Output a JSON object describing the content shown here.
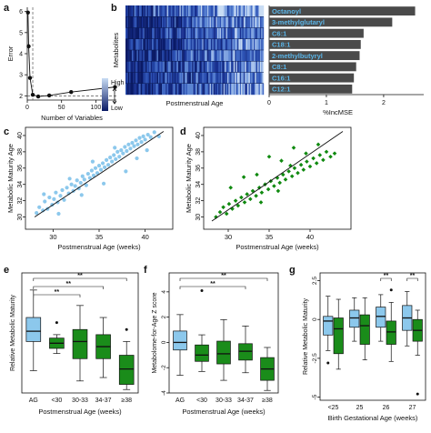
{
  "panel_labels": [
    "a",
    "b",
    "c",
    "d",
    "e",
    "f",
    "g"
  ],
  "colors": {
    "light_blue": "#8cc8ec",
    "blue_box": "#8cc8ec",
    "green": "#108a10",
    "dark_green": "#1a8c1a",
    "bar_gray": "#4a4a4a",
    "label_blue": "#5ab4e6",
    "heat_low": "#0a1a66",
    "heat_high": "#c8dcf4"
  },
  "chart_data": [
    {
      "panel": "a",
      "type": "line",
      "xlabel": "Number of Variables",
      "ylabel": "Error",
      "xlim": [
        0,
        130
      ],
      "ylim": [
        1.8,
        6.2
      ],
      "xticks": [
        "0",
        "50",
        "100"
      ],
      "yticks": [
        "2",
        "3",
        "4",
        "5",
        "6"
      ],
      "reference_line_y": 2.0,
      "x": [
        1,
        2,
        4,
        8,
        16,
        32,
        64,
        128
      ],
      "y": [
        5.95,
        4.35,
        2.85,
        2.05,
        1.97,
        2.02,
        2.18,
        2.42
      ]
    },
    {
      "panel": "b-heatmap",
      "type": "heatmap",
      "xlabel": "Postmenstrual Age",
      "ylabel": "Metabolites",
      "legend": {
        "high": "High",
        "low": "Low"
      }
    },
    {
      "panel": "b-bar",
      "type": "bar",
      "orientation": "horizontal",
      "xlabel": "%IncMSE",
      "xticks": [
        "0",
        "1",
        "2"
      ],
      "xlim": [
        0,
        2.7
      ],
      "categories": [
        "Octanoyl",
        "3-methylglutaryl",
        "C6:1",
        "C18:1",
        "2-methylbutyryl",
        "C8:1",
        "C16:1",
        "C12:1"
      ],
      "values": [
        2.55,
        2.15,
        1.65,
        1.6,
        1.58,
        1.52,
        1.48,
        1.45
      ]
    },
    {
      "panel": "c",
      "type": "scatter",
      "xlabel": "Postmenstrual Age (weeks)",
      "ylabel": "Metabolic Maturity Age",
      "xlim": [
        27,
        43
      ],
      "ylim": [
        28.5,
        41
      ],
      "xticks": [
        "30",
        "35",
        "40"
      ],
      "yticks": [
        "30",
        "32",
        "34",
        "36",
        "38",
        "40"
      ],
      "fit_line": [
        [
          28,
          30
        ],
        [
          42,
          40.5
        ]
      ],
      "x": [
        28.2,
        28.5,
        28.9,
        29.1,
        29.4,
        29.6,
        29.9,
        30.1,
        30.3,
        30.5,
        30.8,
        31.0,
        31.2,
        31.5,
        31.7,
        32.0,
        32.2,
        32.4,
        32.6,
        32.8,
        33.0,
        33.2,
        33.4,
        33.6,
        33.8,
        34.0,
        34.2,
        34.4,
        34.6,
        34.8,
        35.0,
        35.2,
        35.4,
        35.6,
        35.8,
        36.0,
        36.2,
        36.4,
        36.6,
        36.8,
        37.0,
        37.2,
        37.4,
        37.6,
        37.8,
        38.0,
        38.2,
        38.4,
        38.6,
        38.8,
        39.0,
        39.2,
        39.4,
        39.6,
        39.8,
        40.0,
        40.3,
        40.6,
        41.0,
        41.5,
        29.0,
        30.6,
        31.8,
        33.1,
        34.3,
        35.5,
        36.7,
        37.9,
        39.1,
        40.2
      ],
      "y": [
        30.5,
        31.2,
        30.8,
        31.9,
        31.0,
        32.4,
        31.5,
        32.2,
        33.0,
        31.8,
        32.6,
        33.3,
        32.1,
        33.6,
        32.9,
        34.0,
        33.2,
        33.8,
        34.5,
        33.5,
        34.2,
        35.0,
        34.6,
        33.9,
        35.3,
        34.8,
        35.7,
        35.1,
        36.0,
        35.4,
        36.3,
        35.8,
        36.6,
        36.1,
        37.0,
        36.4,
        37.3,
        36.8,
        37.6,
        37.1,
        38.0,
        37.4,
        38.2,
        37.8,
        38.6,
        38.1,
        38.9,
        38.4,
        39.1,
        38.7,
        39.4,
        38.9,
        39.7,
        39.2,
        39.9,
        39.5,
        40.1,
        39.8,
        40.4,
        39.9,
        32.8,
        30.4,
        34.7,
        32.7,
        36.8,
        34.1,
        38.5,
        35.6,
        37.2,
        38.2
      ]
    },
    {
      "panel": "d",
      "type": "scatter",
      "xlabel": "Postmenstrual Age (weeks)",
      "ylabel": "Metabolic Maturity Age",
      "xlim": [
        27,
        45
      ],
      "ylim": [
        28.5,
        41
      ],
      "xticks": [
        "30",
        "35",
        "40"
      ],
      "yticks": [
        "30",
        "32",
        "34",
        "36",
        "38",
        "40"
      ],
      "fit_line": [
        [
          28,
          29.5
        ],
        [
          44,
          40.5
        ]
      ],
      "x": [
        28.5,
        29.0,
        29.4,
        29.8,
        30.1,
        30.5,
        30.9,
        31.2,
        31.6,
        32.0,
        32.3,
        32.7,
        33.0,
        33.4,
        33.8,
        34.1,
        34.5,
        34.9,
        35.2,
        35.6,
        36.0,
        36.3,
        36.7,
        37.0,
        37.4,
        37.8,
        38.1,
        38.5,
        38.9,
        39.2,
        39.6,
        40.0,
        40.4,
        40.8,
        41.2,
        41.6,
        42.0,
        42.5,
        43.0,
        30.3,
        31.9,
        33.5,
        35.0,
        36.5,
        38.0,
        39.5,
        41.0,
        34.0,
        36.1,
        37.6
      ],
      "y": [
        30.0,
        30.6,
        31.2,
        30.4,
        31.6,
        31.0,
        32.0,
        31.4,
        32.4,
        31.8,
        32.8,
        32.2,
        33.2,
        32.6,
        33.6,
        33.0,
        34.0,
        33.4,
        34.4,
        33.8,
        34.8,
        34.2,
        35.2,
        34.6,
        35.6,
        35.0,
        36.0,
        35.4,
        36.4,
        35.8,
        36.8,
        36.2,
        37.2,
        36.6,
        37.6,
        37.0,
        38.0,
        37.4,
        37.8,
        33.6,
        34.9,
        35.2,
        37.4,
        36.9,
        38.5,
        37.8,
        38.9,
        31.8,
        33.2,
        36.3
      ]
    },
    {
      "panel": "e",
      "type": "box",
      "xlabel": "Postmenstrual Age (weeks)",
      "ylabel": "Relative Metabolic Maturity",
      "categories": [
        "AG",
        "<30",
        "30-33",
        "34-37",
        "≥38"
      ],
      "ylim": [
        -3.5,
        3.5
      ],
      "significance": [
        "**",
        "**",
        "**"
      ],
      "boxes": [
        {
          "q1": -0.5,
          "median": 0.1,
          "q3": 0.9,
          "low": -2.2,
          "high": 2.5,
          "outliers": []
        },
        {
          "q1": -0.9,
          "median": -0.6,
          "q3": -0.3,
          "low": -1.2,
          "high": -0.1,
          "outliers": [
            0.6
          ]
        },
        {
          "q1": -1.5,
          "median": -0.5,
          "q3": 0.2,
          "low": -2.8,
          "high": 1.6,
          "outliers": []
        },
        {
          "q1": -1.5,
          "median": -0.8,
          "q3": -0.1,
          "low": -2.6,
          "high": 0.9,
          "outliers": []
        },
        {
          "q1": -3.0,
          "median": -2.1,
          "q3": -1.3,
          "low": -3.3,
          "high": -0.5,
          "outliers": [
            0.2
          ]
        }
      ]
    },
    {
      "panel": "f",
      "type": "box",
      "xlabel": "Postmenstrual Age (weeks)",
      "ylabel": "Metabolome-for-Age Z score",
      "categories": [
        "AG",
        "<30",
        "30-33",
        "34-37",
        "≥38"
      ],
      "ylim": [
        -4,
        5.5
      ],
      "yticks": [
        "-4",
        "-2",
        "0",
        "2",
        "4"
      ],
      "significance": [
        "**",
        "**"
      ],
      "boxes": [
        {
          "q1": -0.6,
          "median": 0.0,
          "q3": 0.9,
          "low": -2.6,
          "high": 2.2,
          "outliers": []
        },
        {
          "q1": -1.5,
          "median": -1.0,
          "q3": -0.2,
          "low": -2.3,
          "high": 0.6,
          "outliers": [
            4.1
          ]
        },
        {
          "q1": -1.7,
          "median": -0.9,
          "q3": 0.1,
          "low": -3.0,
          "high": 1.8,
          "outliers": []
        },
        {
          "q1": -1.4,
          "median": -0.7,
          "q3": -0.1,
          "low": -2.4,
          "high": 1.3,
          "outliers": []
        },
        {
          "q1": -3.0,
          "median": -2.1,
          "q3": -1.2,
          "low": -3.8,
          "high": -0.4,
          "outliers": []
        }
      ]
    },
    {
      "panel": "g",
      "type": "box",
      "xlabel": "Birth Gestational Age (weeks)",
      "ylabel": "Relative Metabolic Maturity",
      "categories": [
        "<25",
        "25",
        "26",
        "27"
      ],
      "ylim": [
        -5.2,
        3.0
      ],
      "yticks": [
        "-5",
        "-2.5",
        "0",
        "2.5"
      ],
      "significance": [
        "**",
        "**"
      ],
      "groups": [
        {
          "blue": {
            "q1": -1.0,
            "median": -0.1,
            "q3": 0.2,
            "low": -2.0,
            "high": 1.5,
            "outliers": [
              -2.8
            ]
          },
          "green": {
            "q1": -2.2,
            "median": -0.6,
            "q3": 0.1,
            "low": -3.2,
            "high": 1.3,
            "outliers": []
          }
        },
        {
          "blue": {
            "q1": -0.5,
            "median": 0.1,
            "q3": 0.6,
            "low": -1.4,
            "high": 1.4,
            "outliers": []
          },
          "green": {
            "q1": -1.6,
            "median": -0.4,
            "q3": 0.3,
            "low": -2.6,
            "high": 1.4,
            "outliers": []
          }
        },
        {
          "blue": {
            "q1": -0.5,
            "median": 0.2,
            "q3": 0.8,
            "low": -1.4,
            "high": 1.6,
            "outliers": []
          },
          "green": {
            "q1": -1.6,
            "median": -0.8,
            "q3": -0.1,
            "low": -2.7,
            "high": 1.1,
            "outliers": [
              1.9
            ]
          }
        },
        {
          "blue": {
            "q1": -0.7,
            "median": 0.1,
            "q3": 0.9,
            "low": -1.7,
            "high": 1.8,
            "outliers": []
          },
          "green": {
            "q1": -1.4,
            "median": -0.7,
            "q3": 0.0,
            "low": -2.3,
            "high": 0.6,
            "outliers": [
              -4.8
            ]
          }
        }
      ]
    }
  ]
}
